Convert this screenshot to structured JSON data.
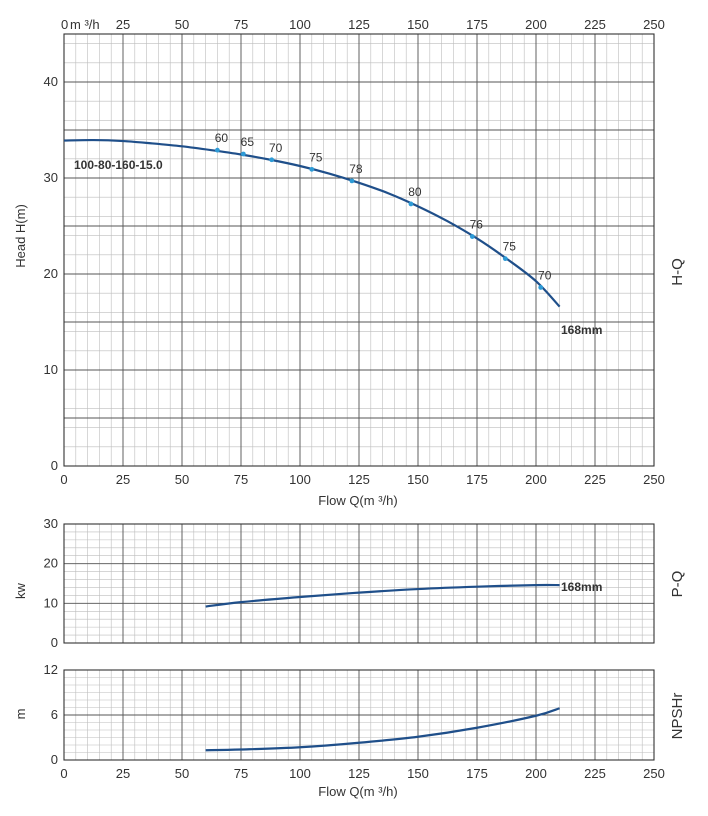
{
  "chart_data": [
    {
      "type": "line",
      "name": "H-Q",
      "side_label": "H-Q",
      "model_label": "100-80-160-15.0",
      "impeller_label": "168mm",
      "ylabel": "Head H(m)",
      "xlabel": "Flow Q(m ³/h)",
      "top_unit": "m ³/h",
      "xlim": [
        0,
        250
      ],
      "ylim": [
        0,
        45
      ],
      "x_ticks": [
        0,
        25,
        50,
        75,
        100,
        125,
        150,
        175,
        200,
        225,
        250
      ],
      "x_tick_labels": [
        "0",
        "25",
        "50",
        "75",
        "100",
        "125",
        "150",
        "175",
        "200",
        "225",
        "250"
      ],
      "y_ticks": [
        0,
        10,
        20,
        30,
        40
      ],
      "y_tick_labels": [
        "0",
        "10",
        "20",
        "30",
        "40"
      ],
      "grid": true,
      "curve": {
        "x": [
          0,
          12.5,
          25,
          37.5,
          50,
          62.5,
          75,
          87.5,
          100,
          112.5,
          125,
          137.5,
          150,
          162.5,
          175,
          187.5,
          200,
          210
        ],
        "y": [
          33.9,
          33.95,
          33.85,
          33.6,
          33.3,
          32.9,
          32.45,
          31.9,
          31.25,
          30.45,
          29.5,
          28.4,
          27.05,
          25.5,
          23.7,
          21.6,
          19.25,
          16.6
        ]
      },
      "efficiency_points": [
        {
          "x": 65,
          "y": 32.9,
          "label": "60"
        },
        {
          "x": 76,
          "y": 32.5,
          "label": "65"
        },
        {
          "x": 88,
          "y": 31.9,
          "label": "70"
        },
        {
          "x": 105,
          "y": 30.9,
          "label": "75"
        },
        {
          "x": 122,
          "y": 29.7,
          "label": "78"
        },
        {
          "x": 147,
          "y": 27.3,
          "label": "80"
        },
        {
          "x": 173,
          "y": 23.9,
          "label": "76"
        },
        {
          "x": 187,
          "y": 21.6,
          "label": "75"
        },
        {
          "x": 202,
          "y": 18.6,
          "label": "70"
        }
      ]
    },
    {
      "type": "line",
      "name": "P-Q",
      "side_label": "P-Q",
      "impeller_label": "168mm",
      "ylabel": "kw",
      "xlim": [
        0,
        250
      ],
      "ylim": [
        0,
        30
      ],
      "y_ticks": [
        0,
        10,
        20,
        30
      ],
      "y_tick_labels": [
        "0",
        "10",
        "20",
        "30"
      ],
      "grid": true,
      "curve": {
        "x": [
          60,
          75,
          100,
          125,
          150,
          175,
          200,
          210
        ],
        "y": [
          9.2,
          10.3,
          11.6,
          12.7,
          13.6,
          14.2,
          14.6,
          14.6
        ]
      }
    },
    {
      "type": "line",
      "name": "NPSHr",
      "side_label": "NPSHr",
      "ylabel": "m",
      "xlabel": "Flow Q(m ³/h)",
      "xlim": [
        0,
        250
      ],
      "ylim": [
        0,
        12
      ],
      "x_ticks": [
        0,
        25,
        50,
        75,
        100,
        125,
        150,
        175,
        200,
        225,
        250
      ],
      "x_tick_labels": [
        "0",
        "25",
        "50",
        "75",
        "100",
        "125",
        "150",
        "175",
        "200",
        "225",
        "250"
      ],
      "y_ticks": [
        0,
        6,
        12
      ],
      "y_tick_labels": [
        "0",
        "6",
        "12"
      ],
      "grid": true,
      "curve": {
        "x": [
          60,
          75,
          100,
          125,
          150,
          175,
          200,
          210
        ],
        "y": [
          1.3,
          1.4,
          1.7,
          2.3,
          3.1,
          4.3,
          5.9,
          6.9
        ]
      }
    }
  ],
  "colors": {
    "curve": "#1f4f8a",
    "point": "#2e9bd6",
    "grid_major": "#555555",
    "grid_minor": "#bdbdbd",
    "text": "#333333"
  }
}
